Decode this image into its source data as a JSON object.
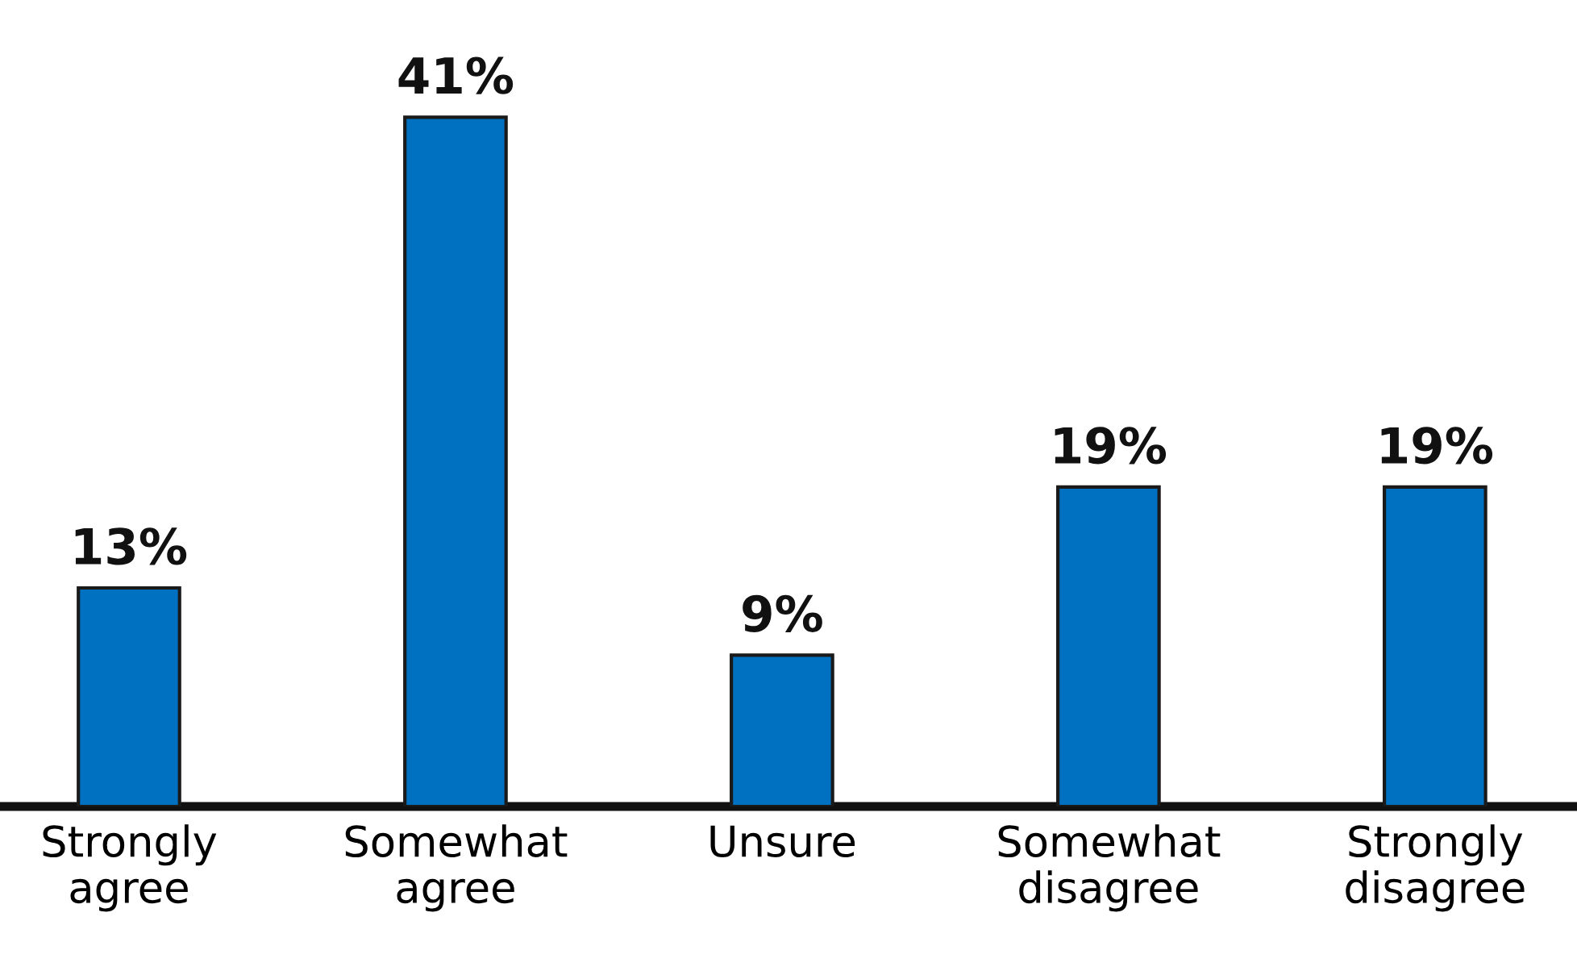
{
  "chart_data": {
    "type": "bar",
    "categories": [
      "Strongly\nagree",
      "Somewhat\nagree",
      "Unsure",
      "Somewhat\ndisagree",
      "Strongly\ndisagree"
    ],
    "values": [
      13,
      41,
      9,
      19,
      19
    ],
    "value_labels": [
      "13%",
      "41%",
      "9%",
      "19%",
      "19%"
    ],
    "color": "#0070c0",
    "grid": false,
    "legend": false
  }
}
